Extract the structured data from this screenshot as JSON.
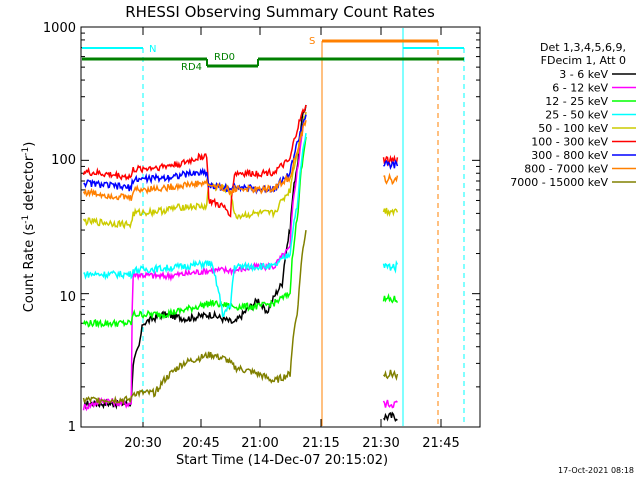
{
  "chart_data": {
    "type": "line",
    "title": "RHESSI Observing Summary Count Rates",
    "xlabel": "Start Time (14-Dec-07 20:15:02)",
    "ylabel_main": "Count Rate (s",
    "ylabel_sup1": "-1",
    "ylabel_mid": " detector",
    "ylabel_sup2": "-1",
    "ylabel_end": ")",
    "x_ticks": [
      "20:30",
      "20:45",
      "21:00",
      "21:15",
      "21:30",
      "21:45"
    ],
    "y_ticks": [
      "1",
      "10",
      "100",
      "1000"
    ],
    "y_scale": "log",
    "ylim": [
      1,
      1000
    ],
    "legend_header": [
      "Det 1,3,4,5,6,9,",
      "FDecim 1, Att 0"
    ],
    "series": [
      {
        "name": "3 - 6 keV",
        "color": "#000000",
        "points": [
          [
            0,
            1.5
          ],
          [
            12,
            1.5
          ],
          [
            12.5,
            3
          ],
          [
            14,
            4
          ],
          [
            15,
            6
          ],
          [
            20,
            7
          ],
          [
            26,
            6.5
          ],
          [
            32,
            7
          ],
          [
            38,
            6
          ],
          [
            42,
            8
          ],
          [
            44,
            9
          ],
          [
            46,
            7
          ],
          [
            50,
            12
          ],
          [
            52,
            30
          ],
          [
            54,
            100
          ],
          [
            55,
            200
          ],
          [
            56,
            260
          ]
        ]
      },
      {
        "name": "6 - 12 keV",
        "color": "#ff00ff",
        "points": [
          [
            0,
            1.4
          ],
          [
            5,
            1.6
          ],
          [
            10,
            1.5
          ],
          [
            12,
            1.5
          ],
          [
            12.5,
            14
          ],
          [
            20,
            13.5
          ],
          [
            25,
            14
          ],
          [
            32,
            15
          ],
          [
            38,
            15
          ],
          [
            44,
            16
          ],
          [
            48,
            16
          ],
          [
            52,
            22
          ],
          [
            54,
            90
          ],
          [
            56,
            230
          ]
        ]
      },
      {
        "name": "12 - 25 keV",
        "color": "#00ff00",
        "points": [
          [
            0,
            6
          ],
          [
            12,
            6
          ],
          [
            12.5,
            7
          ],
          [
            20,
            7
          ],
          [
            25,
            7.5
          ],
          [
            32,
            8.5
          ],
          [
            38,
            8
          ],
          [
            44,
            8
          ],
          [
            48,
            8.5
          ],
          [
            52,
            10
          ],
          [
            54,
            40
          ],
          [
            56,
            150
          ]
        ]
      },
      {
        "name": "25 - 50 keV",
        "color": "#00ffff",
        "points": [
          [
            0,
            14
          ],
          [
            12,
            14
          ],
          [
            12.5,
            15
          ],
          [
            20,
            15.5
          ],
          [
            25,
            16
          ],
          [
            32,
            17
          ],
          [
            35,
            7
          ],
          [
            37,
            8
          ],
          [
            38,
            16
          ],
          [
            44,
            16
          ],
          [
            48,
            16
          ],
          [
            52,
            20
          ],
          [
            54,
            50
          ],
          [
            56,
            160
          ]
        ]
      },
      {
        "name": "50 - 100 keV",
        "color": "#cccc00",
        "points": [
          [
            0,
            35
          ],
          [
            12,
            33
          ],
          [
            12.5,
            40
          ],
          [
            20,
            42
          ],
          [
            25,
            45
          ],
          [
            31,
            45
          ],
          [
            31.5,
            65
          ],
          [
            37,
            60
          ],
          [
            38,
            38
          ],
          [
            44,
            40
          ],
          [
            48,
            40
          ],
          [
            52,
            60
          ],
          [
            54,
            120
          ],
          [
            56,
            230
          ]
        ]
      },
      {
        "name": "100 - 300 keV",
        "color": "#ff0000",
        "points": [
          [
            0,
            82
          ],
          [
            12,
            75
          ],
          [
            12.5,
            85
          ],
          [
            20,
            90
          ],
          [
            25,
            95
          ],
          [
            31,
            110
          ],
          [
            31.5,
            50
          ],
          [
            35,
            45
          ],
          [
            37,
            40
          ],
          [
            38,
            80
          ],
          [
            44,
            80
          ],
          [
            48,
            82
          ],
          [
            52,
            100
          ],
          [
            54,
            180
          ],
          [
            56,
            260
          ]
        ]
      },
      {
        "name": "300 - 800 keV",
        "color": "#0000ff",
        "points": [
          [
            0,
            68
          ],
          [
            12,
            62
          ],
          [
            12.5,
            72
          ],
          [
            20,
            74
          ],
          [
            25,
            78
          ],
          [
            31,
            82
          ],
          [
            31.5,
            65
          ],
          [
            36,
            62
          ],
          [
            37,
            58
          ],
          [
            38,
            65
          ],
          [
            44,
            60
          ],
          [
            48,
            62
          ],
          [
            52,
            80
          ],
          [
            54,
            140
          ],
          [
            56,
            220
          ]
        ]
      },
      {
        "name": "800 - 7000 keV",
        "color": "#ff8000",
        "points": [
          [
            0,
            58
          ],
          [
            12,
            52
          ],
          [
            12.5,
            60
          ],
          [
            20,
            62
          ],
          [
            25,
            65
          ],
          [
            31,
            68
          ],
          [
            31.5,
            65
          ],
          [
            36,
            62
          ],
          [
            37,
            56
          ],
          [
            38,
            62
          ],
          [
            44,
            60
          ],
          [
            48,
            62
          ],
          [
            52,
            75
          ],
          [
            54,
            120
          ],
          [
            56,
            200
          ]
        ]
      },
      {
        "name": "7000 - 15000 keV",
        "color": "#808000",
        "points": [
          [
            0,
            1.6
          ],
          [
            12,
            1.6
          ],
          [
            12.5,
            1.8
          ],
          [
            18,
            1.8
          ],
          [
            20,
            2.2
          ],
          [
            25,
            3
          ],
          [
            32,
            3.5
          ],
          [
            36,
            3.2
          ],
          [
            38,
            2.8
          ],
          [
            44,
            2.5
          ],
          [
            48,
            2.2
          ],
          [
            52,
            2.5
          ],
          [
            54,
            8
          ],
          [
            56,
            30
          ]
        ]
      }
    ]
  },
  "annotations": {
    "n_label": "N",
    "s_label": "S",
    "rd0_label": "RD0",
    "rd4_label": "RD4"
  },
  "colors": {
    "night": "#00ffff",
    "saa": "#ff8000",
    "decim": "#008000"
  },
  "footer_date": "17-Oct-2021 08:18"
}
